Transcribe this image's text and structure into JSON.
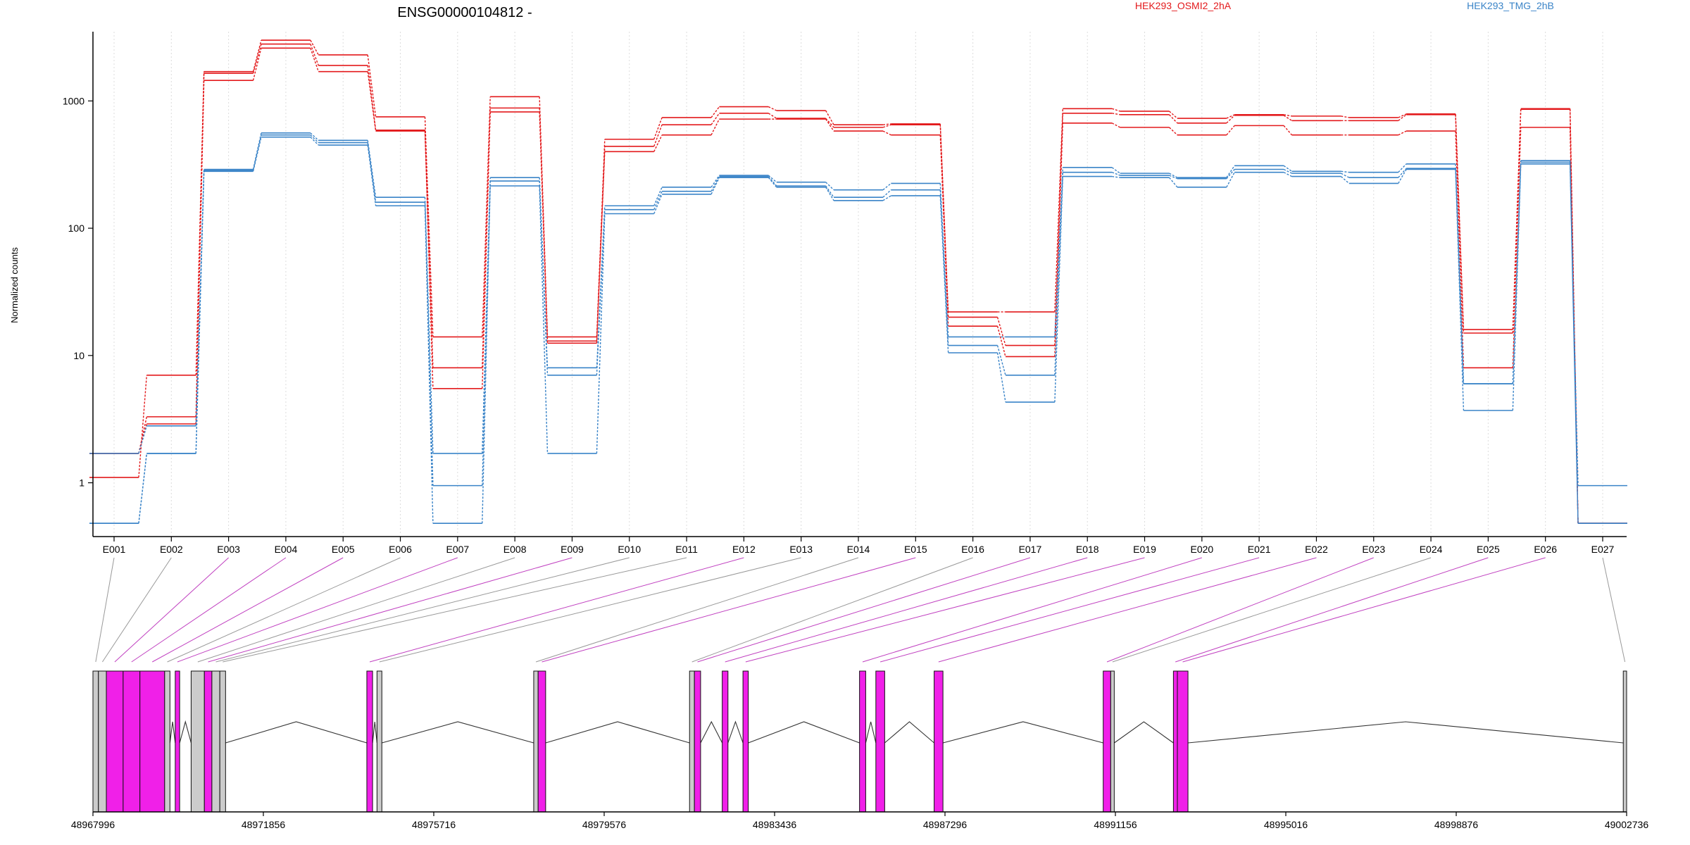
{
  "chart_data": [
    {
      "type": "line",
      "subtype": "step",
      "title": "ENSG00000104812 -",
      "xlabel": "",
      "ylabel": "Normalized counts",
      "yscale": "log",
      "ylim": [
        0.5,
        3500
      ],
      "ytick_values": [
        1,
        10,
        100,
        1000
      ],
      "ytick_labels": [
        "1",
        "10",
        "100",
        "1000"
      ],
      "grid": "vertical dotted at exon centers",
      "legend_position": "top",
      "categories": [
        "E001",
        "E002",
        "E003",
        "E004",
        "E005",
        "E006",
        "E007",
        "E008",
        "E009",
        "E010",
        "E011",
        "E012",
        "E013",
        "E014",
        "E015",
        "E016",
        "E017",
        "E018",
        "E019",
        "E020",
        "E021",
        "E022",
        "E023",
        "E024",
        "E025",
        "E026",
        "E027"
      ],
      "groups": [
        {
          "name": "HEK293_OSMI2_2hA",
          "color": "#e31a1c"
        },
        {
          "name": "HEK293_TMG_2hB",
          "color": "#3a84c8"
        }
      ],
      "series": [
        {
          "group": 0,
          "values": [
            1.1,
            7.0,
            1700,
            3000,
            2300,
            750,
            14,
            1080,
            14,
            500,
            740,
            900,
            840,
            650,
            660,
            22,
            22,
            870,
            830,
            730,
            780,
            760,
            740,
            790,
            16,
            870,
            0.48
          ]
        },
        {
          "group": 0,
          "values": [
            1.7,
            3.3,
            1650,
            2800,
            1900,
            590,
            8.0,
            880,
            13,
            440,
            650,
            800,
            730,
            620,
            650,
            20,
            12,
            800,
            780,
            670,
            770,
            700,
            700,
            780,
            15,
            860,
            0.48
          ]
        },
        {
          "group": 0,
          "values": [
            1.7,
            2.9,
            1450,
            2600,
            1700,
            580,
            5.5,
            820,
            12.5,
            400,
            540,
            720,
            720,
            580,
            540,
            17,
            9.8,
            670,
            620,
            540,
            640,
            540,
            540,
            580,
            8.0,
            620,
            0.48
          ]
        },
        {
          "group": 1,
          "values": [
            0.48,
            1.7,
            290,
            560,
            490,
            175,
            1.7,
            250,
            8.0,
            150,
            210,
            260,
            230,
            200,
            225,
            14,
            14,
            300,
            270,
            250,
            310,
            280,
            275,
            320,
            6.0,
            340,
            0.95
          ]
        },
        {
          "group": 1,
          "values": [
            0.48,
            1.7,
            285,
            540,
            470,
            160,
            0.95,
            235,
            7.0,
            140,
            195,
            255,
            215,
            175,
            200,
            12,
            7.0,
            275,
            260,
            245,
            290,
            270,
            250,
            295,
            6.0,
            330,
            0.48
          ]
        },
        {
          "group": 1,
          "values": [
            1.7,
            2.8,
            280,
            520,
            450,
            150,
            0.48,
            215,
            1.7,
            130,
            185,
            250,
            210,
            165,
            180,
            10.5,
            4.3,
            255,
            250,
            210,
            275,
            255,
            225,
            290,
            3.7,
            320,
            0.48
          ]
        }
      ]
    },
    {
      "type": "gene-model",
      "xlim": [
        48967996,
        49002736
      ],
      "tick_values": [
        48967996,
        48971856,
        48975716,
        48979576,
        48983436,
        48987296,
        48991156,
        48995016,
        48998876,
        49002736
      ],
      "tick_labels": [
        "48967996",
        "48971856",
        "48975716",
        "48979576",
        "48983436",
        "48987296",
        "48991156",
        "48995016",
        "48998876",
        "49002736"
      ],
      "highlight_color": "#f020e8",
      "plain_color": "#cccccc",
      "exons": [
        {
          "id": "E001",
          "start": 48967996,
          "end": 48968120,
          "highlight": false
        },
        {
          "id": "E002",
          "start": 48968120,
          "end": 48968300,
          "highlight": false
        },
        {
          "id": "E003",
          "start": 48968300,
          "end": 48968680,
          "highlight": true
        },
        {
          "id": "E004",
          "start": 48968680,
          "end": 48969060,
          "highlight": true
        },
        {
          "id": "E005",
          "start": 48969060,
          "end": 48969620,
          "highlight": true
        },
        {
          "id": "E006",
          "start": 48969620,
          "end": 48969740,
          "highlight": false
        },
        {
          "id": "E007",
          "start": 48969860,
          "end": 48969960,
          "highlight": true
        },
        {
          "id": "E008",
          "start": 48970220,
          "end": 48970520,
          "highlight": false
        },
        {
          "id": "E009",
          "start": 48970520,
          "end": 48970690,
          "highlight": true
        },
        {
          "id": "E010",
          "start": 48970690,
          "end": 48970870,
          "highlight": false
        },
        {
          "id": "E011",
          "start": 48970870,
          "end": 48971000,
          "highlight": false
        },
        {
          "id": "E012",
          "start": 48974200,
          "end": 48974330,
          "highlight": true
        },
        {
          "id": "E013",
          "start": 48974430,
          "end": 48974540,
          "highlight": false
        },
        {
          "id": "E014",
          "start": 48977980,
          "end": 48978080,
          "highlight": false
        },
        {
          "id": "E015",
          "start": 48978080,
          "end": 48978250,
          "highlight": true
        },
        {
          "id": "E016",
          "start": 48981510,
          "end": 48981620,
          "highlight": false
        },
        {
          "id": "E017",
          "start": 48981620,
          "end": 48981760,
          "highlight": true
        },
        {
          "id": "E018",
          "start": 48982250,
          "end": 48982380,
          "highlight": true
        },
        {
          "id": "E019",
          "start": 48982720,
          "end": 48982840,
          "highlight": true
        },
        {
          "id": "E020",
          "start": 48985360,
          "end": 48985500,
          "highlight": true
        },
        {
          "id": "E021",
          "start": 48985730,
          "end": 48985930,
          "highlight": true
        },
        {
          "id": "E022",
          "start": 48987050,
          "end": 48987250,
          "highlight": true
        },
        {
          "id": "E023",
          "start": 48990880,
          "end": 48991050,
          "highlight": true
        },
        {
          "id": "E024",
          "start": 48991050,
          "end": 48991130,
          "highlight": false
        },
        {
          "id": "E025",
          "start": 48992470,
          "end": 48992560,
          "highlight": true
        },
        {
          "id": "E026",
          "start": 48992560,
          "end": 48992800,
          "highlight": true
        },
        {
          "id": "E027",
          "start": 49002660,
          "end": 49002736,
          "highlight": false
        }
      ]
    }
  ]
}
